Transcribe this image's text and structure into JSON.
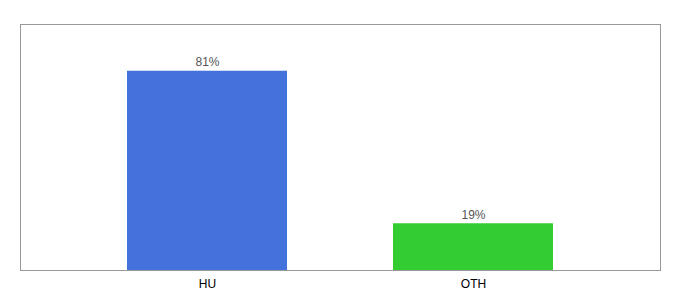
{
  "chart_data": {
    "type": "bar",
    "categories": [
      "HU",
      "OTH"
    ],
    "values": [
      81,
      19
    ],
    "value_labels": [
      "81%",
      "19%"
    ],
    "colors": [
      "#4472dd",
      "#33cc33"
    ],
    "ylim": [
      0,
      100
    ],
    "data_labels": true,
    "tick_labels": "x"
  }
}
